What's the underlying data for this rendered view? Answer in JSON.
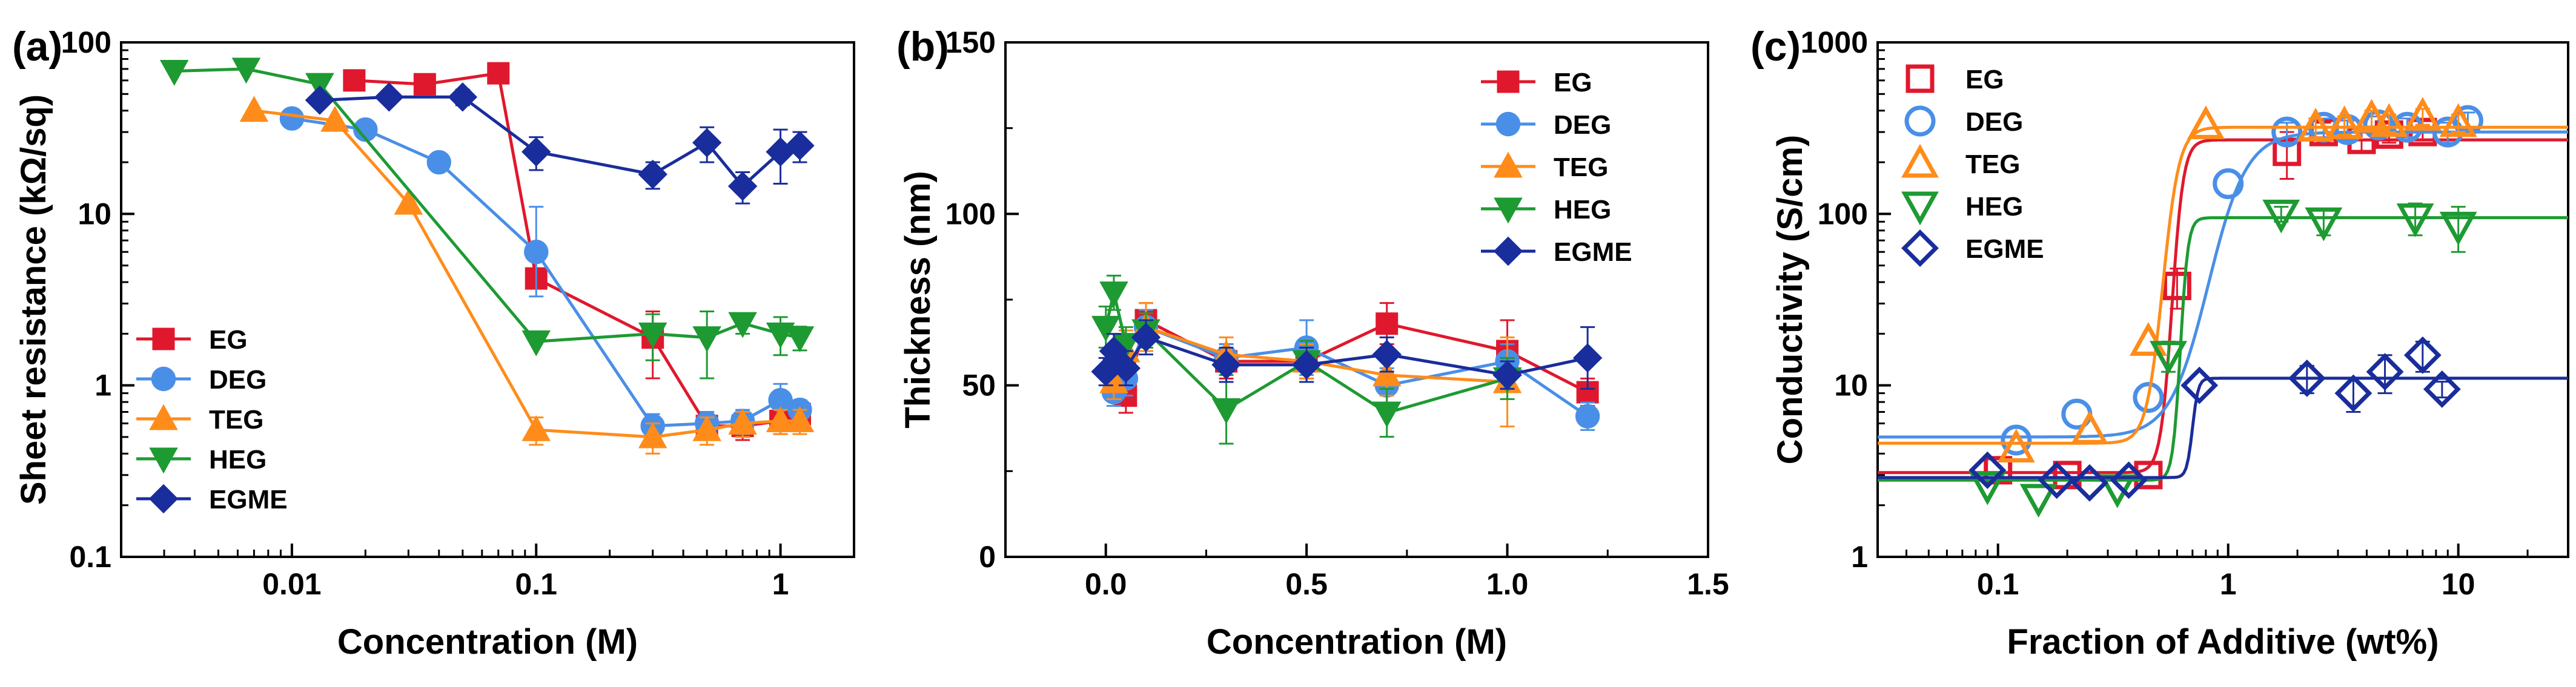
{
  "chart_data": [
    {
      "id": "a",
      "panel_label": "(a)",
      "type": "line",
      "xscale": "log",
      "yscale": "log",
      "xlabel": "Concentration (M)",
      "ylabel": "Sheet resistance (kΩ/sq)",
      "xlim": [
        0.002,
        2
      ],
      "ylim": [
        0.1,
        100
      ],
      "xticks": [
        {
          "v": 0.01,
          "label": "0.01"
        },
        {
          "v": 0.1,
          "label": "0.1"
        },
        {
          "v": 1,
          "label": "1"
        }
      ],
      "yticks": [
        {
          "v": 0.1,
          "label": "0.1"
        },
        {
          "v": 1,
          "label": "1"
        },
        {
          "v": 10,
          "label": "10"
        },
        {
          "v": 100,
          "label": "100"
        }
      ],
      "legend_position": "lower-left",
      "series": [
        {
          "name": "EG",
          "color": "#e0182d",
          "marker": "square",
          "filled": true,
          "x": [
            0.018,
            0.035,
            0.07,
            0.1,
            0.3,
            0.5,
            0.7,
            1.0,
            1.2
          ],
          "y": [
            60,
            57,
            66,
            4.2,
            1.9,
            0.58,
            0.58,
            0.62,
            0.68
          ],
          "err": [
            0,
            0,
            0,
            0,
            0.8,
            0.1,
            0.1,
            0.1,
            0.1
          ]
        },
        {
          "name": "DEG",
          "color": "#4a8fe7",
          "marker": "circle",
          "filled": true,
          "x": [
            0.01,
            0.02,
            0.04,
            0.1,
            0.3,
            0.5,
            0.7,
            1.0,
            1.2
          ],
          "y": [
            36,
            31,
            20,
            6.0,
            0.58,
            0.6,
            0.62,
            0.82,
            0.72
          ],
          "err": [
            0,
            0,
            0,
            5,
            0.1,
            0.1,
            0.1,
            0.2,
            0.1
          ]
        },
        {
          "name": "TEG",
          "color": "#ff8c1a",
          "marker": "triangle-up",
          "filled": true,
          "x": [
            0.007,
            0.015,
            0.03,
            0.1,
            0.3,
            0.5,
            0.7,
            1.0,
            1.2
          ],
          "y": [
            40,
            35,
            11.5,
            0.55,
            0.5,
            0.55,
            0.6,
            0.62,
            0.62
          ],
          "err": [
            0,
            0,
            0,
            0.1,
            0.1,
            0.1,
            0.1,
            0.1,
            0.1
          ]
        },
        {
          "name": "HEG",
          "color": "#1e9a32",
          "marker": "triangle-down",
          "filled": true,
          "x": [
            0.0033,
            0.0065,
            0.013,
            0.1,
            0.3,
            0.5,
            0.7,
            1.0,
            1.2
          ],
          "y": [
            68,
            70,
            57,
            1.8,
            2.0,
            1.9,
            2.3,
            2.0,
            1.9
          ],
          "err": [
            0,
            0,
            0,
            0,
            0.6,
            0.8,
            0.3,
            0.5,
            0.3
          ]
        },
        {
          "name": "EGME",
          "color": "#1a2d9c",
          "marker": "diamond",
          "filled": true,
          "x": [
            0.013,
            0.025,
            0.05,
            0.1,
            0.3,
            0.5,
            0.7,
            1.0,
            1.2
          ],
          "y": [
            46,
            48,
            48,
            23,
            17,
            26,
            14.5,
            23,
            25
          ],
          "err": [
            0,
            0,
            5,
            5,
            3,
            6,
            3,
            8,
            5
          ]
        }
      ]
    },
    {
      "id": "b",
      "panel_label": "(b)",
      "type": "line",
      "xscale": "linear",
      "yscale": "linear",
      "xlabel": "Concentration (M)",
      "ylabel": "Thickness (nm)",
      "xlim": [
        -0.25,
        1.5
      ],
      "ylim": [
        0,
        150
      ],
      "xticks": [
        {
          "v": 0,
          "label": "0.0"
        },
        {
          "v": 0.5,
          "label": "0.5"
        },
        {
          "v": 1.0,
          "label": "1.0"
        },
        {
          "v": 1.5,
          "label": "1.5"
        }
      ],
      "yticks": [
        {
          "v": 0,
          "label": "0"
        },
        {
          "v": 50,
          "label": "50"
        },
        {
          "v": 100,
          "label": "100"
        },
        {
          "v": 150,
          "label": "150"
        }
      ],
      "legend_position": "top-right",
      "series": [
        {
          "name": "EG",
          "color": "#e0182d",
          "marker": "square",
          "filled": true,
          "x": [
            0.02,
            0.05,
            0.1,
            0.3,
            0.5,
            0.7,
            1.0,
            1.2
          ],
          "y": [
            55,
            47,
            69,
            57,
            57,
            68,
            60,
            48
          ],
          "err": [
            5,
            5,
            5,
            5,
            5,
            6,
            9,
            4
          ]
        },
        {
          "name": "DEG",
          "color": "#4a8fe7",
          "marker": "circle",
          "filled": true,
          "x": [
            0.02,
            0.05,
            0.1,
            0.3,
            0.5,
            0.7,
            1.0,
            1.2
          ],
          "y": [
            48,
            52,
            67,
            58,
            61,
            50,
            57,
            41
          ],
          "err": [
            4,
            5,
            5,
            4,
            8,
            5,
            5,
            4
          ]
        },
        {
          "name": "TEG",
          "color": "#ff8c1a",
          "marker": "triangle-up",
          "filled": true,
          "x": [
            0.02,
            0.05,
            0.1,
            0.3,
            0.5,
            0.7,
            1.0
          ],
          "y": [
            51,
            60,
            67,
            59,
            57,
            53,
            51
          ],
          "err": [
            5,
            6,
            7,
            5,
            5,
            6,
            13
          ]
        },
        {
          "name": "HEG",
          "color": "#1e9a32",
          "marker": "triangle-down",
          "filled": true,
          "x": [
            0.0,
            0.02,
            0.05,
            0.1,
            0.3,
            0.5,
            0.7,
            1.0
          ],
          "y": [
            67,
            77,
            62,
            66,
            43,
            57,
            42,
            52
          ],
          "err": [
            6,
            5,
            5,
            5,
            10,
            6,
            7,
            6
          ]
        },
        {
          "name": "EGME",
          "color": "#1a2d9c",
          "marker": "diamond",
          "filled": true,
          "x": [
            0.0,
            0.02,
            0.05,
            0.1,
            0.3,
            0.5,
            0.7,
            1.0,
            1.2
          ],
          "y": [
            54,
            60,
            55,
            64,
            56,
            56,
            59,
            53,
            58
          ],
          "err": [
            4,
            5,
            5,
            5,
            5,
            5,
            5,
            4,
            9
          ]
        }
      ]
    },
    {
      "id": "c",
      "panel_label": "(c)",
      "type": "scatter",
      "xscale": "log",
      "yscale": "log",
      "xlabel": "Fraction of Additive (wt%)",
      "ylabel": "Conductivity (S/cm)",
      "xlim": [
        0.03,
        30
      ],
      "ylim": [
        1,
        1000
      ],
      "xticks": [
        {
          "v": 0.1,
          "label": "0.1"
        },
        {
          "v": 1,
          "label": "1"
        },
        {
          "v": 10,
          "label": "10"
        }
      ],
      "yticks": [
        {
          "v": 1,
          "label": "1"
        },
        {
          "v": 10,
          "label": "10"
        },
        {
          "v": 100,
          "label": "100"
        },
        {
          "v": 1000,
          "label": "1000"
        }
      ],
      "legend_position": "top-left",
      "series": [
        {
          "name": "EG",
          "color": "#e0182d",
          "marker": "square",
          "filled": false,
          "x": [
            0.1,
            0.2,
            0.45,
            0.6,
            1.8,
            2.6,
            3.8,
            5,
            7
          ],
          "y": [
            3.2,
            3.0,
            3.0,
            38,
            230,
            300,
            270,
            290,
            300
          ],
          "err": [
            0,
            0,
            0,
            10,
            70,
            40,
            40,
            30,
            30
          ],
          "fit": {
            "low": 3.1,
            "high": 270,
            "x0": 0.57,
            "k": 40
          }
        },
        {
          "name": "DEG",
          "color": "#4a8fe7",
          "marker": "circle",
          "filled": false,
          "x": [
            0.12,
            0.22,
            0.45,
            1.0,
            1.8,
            2.6,
            3.3,
            4.5,
            6,
            9,
            11
          ],
          "y": [
            4.8,
            6.8,
            8.5,
            150,
            300,
            320,
            310,
            330,
            320,
            300,
            350
          ],
          "err": [
            0,
            0,
            0,
            0,
            40,
            40,
            40,
            40,
            40,
            40,
            40
          ],
          "fit": {
            "low": 5.0,
            "high": 300,
            "x0": 0.82,
            "k": 12
          }
        },
        {
          "name": "TEG",
          "color": "#ff8c1a",
          "marker": "triangle-up",
          "filled": false,
          "x": [
            0.12,
            0.25,
            0.45,
            0.8,
            2.4,
            3.2,
            4.2,
            5,
            7,
            10
          ],
          "y": [
            4.3,
            5.5,
            18,
            330,
            320,
            330,
            360,
            340,
            370,
            340
          ],
          "err": [
            0,
            0,
            0,
            0,
            40,
            40,
            40,
            40,
            40,
            40
          ],
          "fit": {
            "low": 4.6,
            "high": 320,
            "x0": 0.52,
            "k": 28
          }
        },
        {
          "name": "HEG",
          "color": "#1e9a32",
          "marker": "triangle-down",
          "filled": false,
          "x": [
            0.09,
            0.15,
            0.33,
            0.55,
            1.7,
            2.6,
            6.5,
            10
          ],
          "y": [
            2.6,
            2.2,
            2.5,
            15,
            100,
            90,
            95,
            85
          ],
          "err": [
            0,
            0,
            0,
            3,
            10,
            15,
            20,
            25
          ],
          "fit": {
            "low": 2.8,
            "high": 95,
            "x0": 0.62,
            "k": 60
          }
        },
        {
          "name": "EGME",
          "color": "#1a2d9c",
          "marker": "diamond",
          "filled": false,
          "x": [
            0.09,
            0.18,
            0.25,
            0.37,
            0.75,
            2.2,
            3.5,
            4.8,
            7,
            8.5
          ],
          "y": [
            3.2,
            2.8,
            2.7,
            2.8,
            10,
            11,
            9,
            12,
            15,
            9.5
          ],
          "err": [
            0,
            0,
            0,
            0,
            0,
            2,
            2,
            3,
            3,
            1
          ],
          "fit": {
            "low": 2.9,
            "high": 11,
            "x0": 0.7,
            "k": 80
          }
        }
      ]
    }
  ]
}
